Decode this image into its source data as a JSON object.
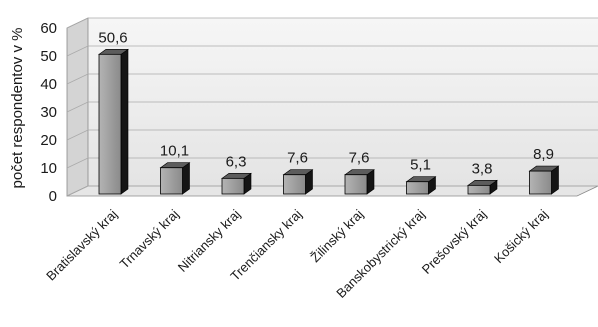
{
  "chart_data": {
    "type": "bar",
    "title": "",
    "xlabel": "",
    "ylabel": "počet respondentov v %",
    "ylim": [
      0,
      60
    ],
    "yticks": [
      0,
      10,
      20,
      30,
      40,
      50,
      60
    ],
    "grid": true,
    "legend": "none",
    "style": "3d",
    "categories": [
      "Bratislavský kraj",
      "Trnavský kraj",
      "Nitriansky kraj",
      "Trenčiansky kraj",
      "Žilinský kraj",
      "Banskobystrický kraj",
      "Prešovský kraj",
      "Košický kraj"
    ],
    "values": [
      50.6,
      10.1,
      6.3,
      7.6,
      7.6,
      5.1,
      3.8,
      8.9
    ],
    "value_labels": [
      "50,6",
      "10,1",
      "6,3",
      "7,6",
      "7,6",
      "5,1",
      "3,8",
      "8,9"
    ],
    "colors": {
      "bar_front": "#9a9a9a",
      "bar_top": "#5c5c5c",
      "bar_side": "#151515",
      "wall": "#ececec",
      "floor": "#e6e6e6",
      "grid": "#aaaaaa"
    }
  }
}
